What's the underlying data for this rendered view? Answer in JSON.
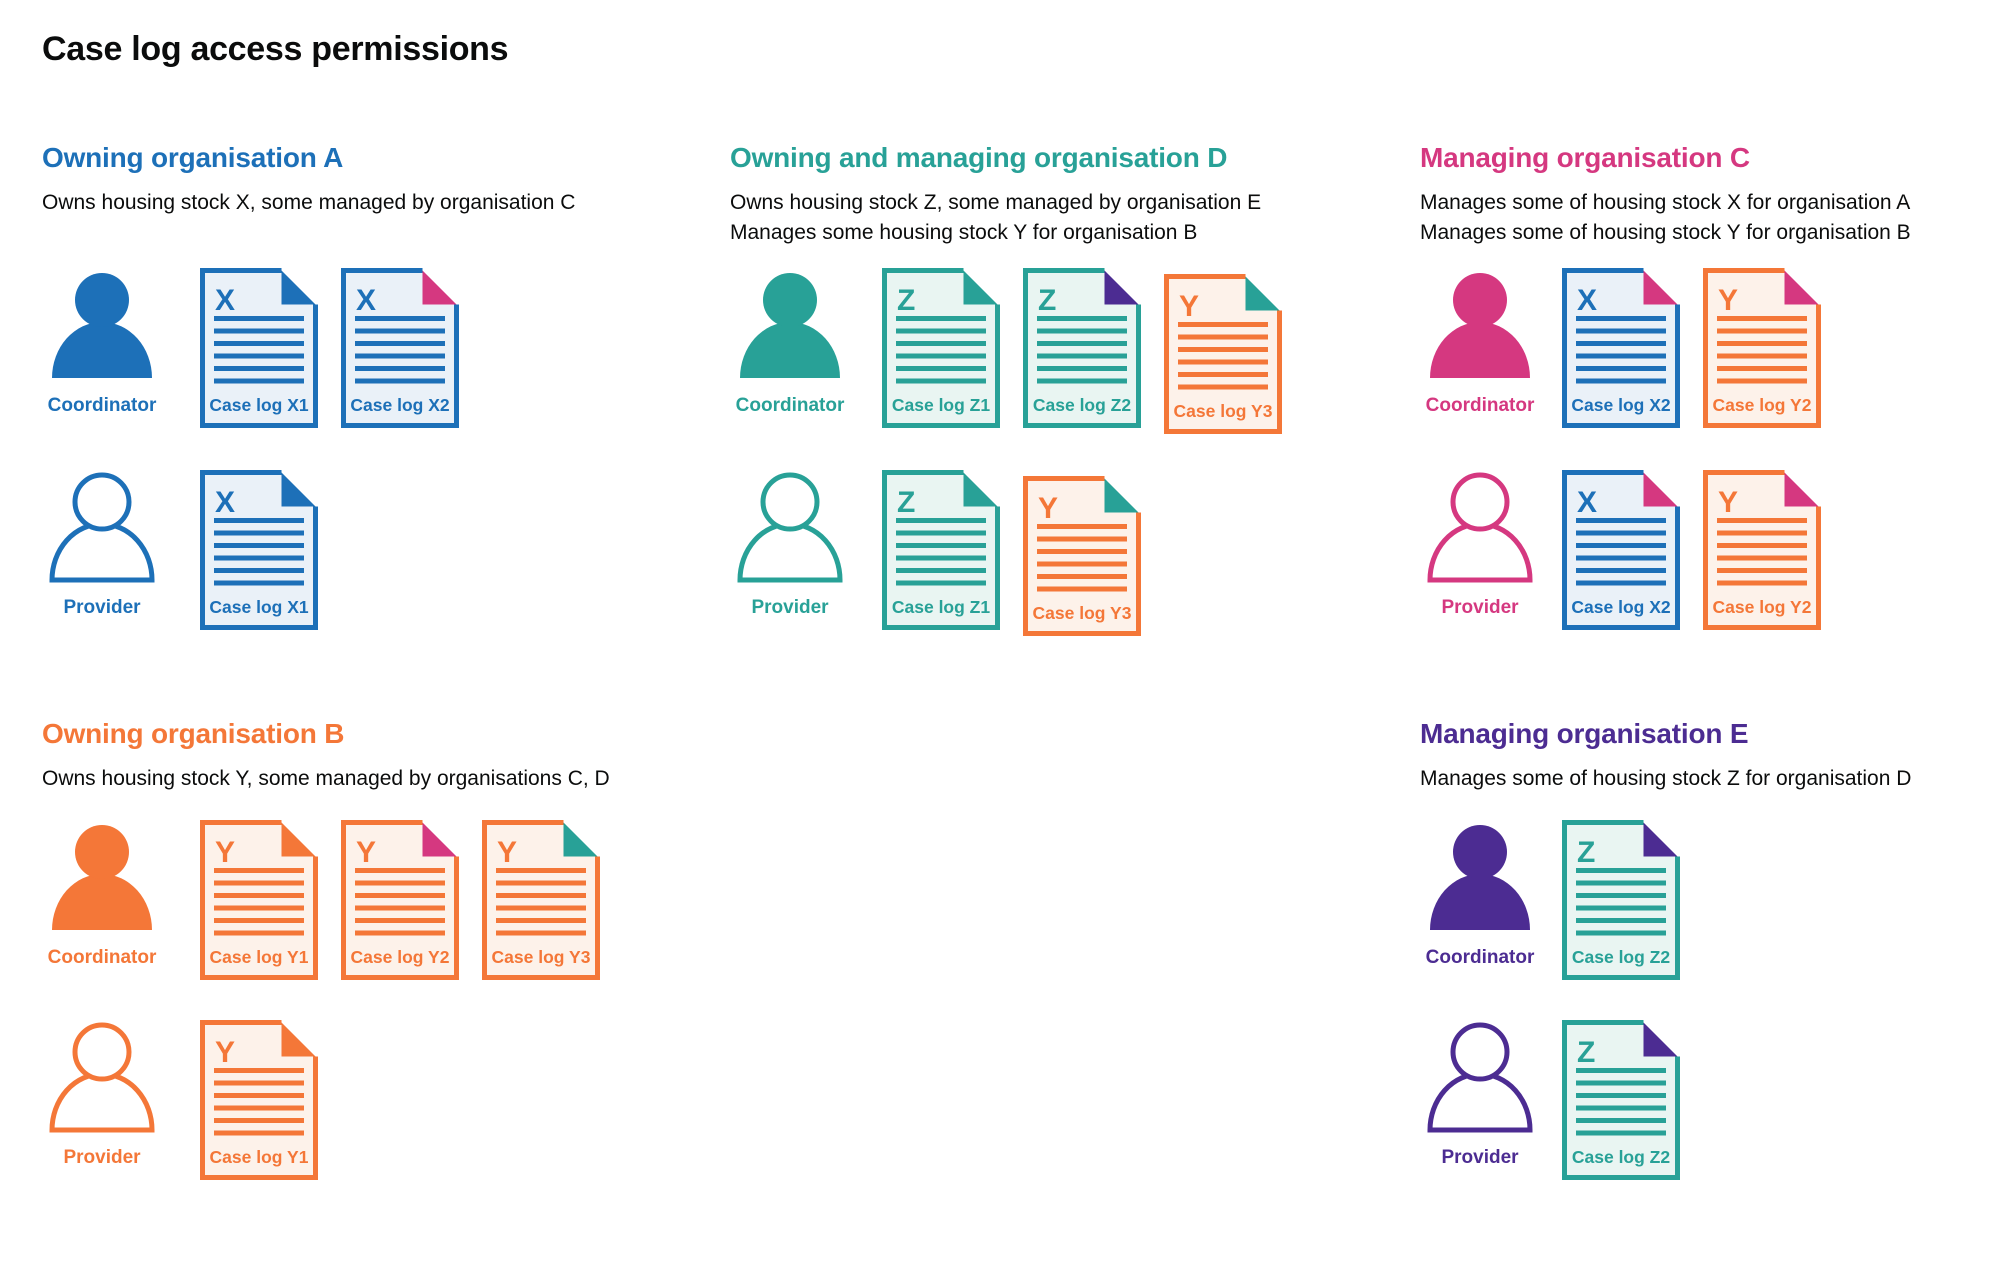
{
  "title": "Case log access permissions",
  "palette": {
    "blue": "#1d70b8",
    "teal": "#28a197",
    "pink": "#d53880",
    "orange": "#f47738",
    "purple": "#4c2c92",
    "blue_tint": "#eaf1f8",
    "teal_tint": "#e9f5f2",
    "orange_tint": "#fdf2ea",
    "text": "#0b0c0c"
  },
  "roles": [
    "Coordinator",
    "Provider"
  ],
  "sections": [
    {
      "id": "a",
      "color": "blue",
      "heading": "Owning organisation A",
      "desc": [
        "Owns housing stock X, some managed by organisation C"
      ],
      "rows": [
        {
          "role": "Coordinator",
          "docs": [
            {
              "letter": "X",
              "label": "Case log X1",
              "page": "blue",
              "fold": "blue"
            },
            {
              "letter": "X",
              "label": "Case log X2",
              "page": "blue",
              "fold": "pink"
            }
          ]
        },
        {
          "role": "Provider",
          "docs": [
            {
              "letter": "X",
              "label": "Case log X1",
              "page": "blue",
              "fold": "blue"
            }
          ]
        }
      ]
    },
    {
      "id": "d",
      "color": "teal",
      "heading": "Owning and managing organisation D",
      "desc": [
        "Owns housing stock Z, some managed by organisation E",
        "Manages some housing stock Y for organisation B"
      ],
      "rows": [
        {
          "role": "Coordinator",
          "docs": [
            {
              "letter": "Z",
              "label": "Case log Z1",
              "page": "teal",
              "fold": "teal"
            },
            {
              "letter": "Z",
              "label": "Case log Z2",
              "page": "teal",
              "fold": "purple"
            },
            {
              "letter": "Y",
              "label": "Case log Y3",
              "page": "orange",
              "fold": "teal",
              "offset": true
            }
          ]
        },
        {
          "role": "Provider",
          "docs": [
            {
              "letter": "Z",
              "label": "Case log Z1",
              "page": "teal",
              "fold": "teal"
            },
            {
              "letter": "Y",
              "label": "Case log Y3",
              "page": "orange",
              "fold": "teal",
              "offset": true
            }
          ]
        }
      ]
    },
    {
      "id": "c",
      "color": "pink",
      "heading": "Managing organisation C",
      "desc": [
        "Manages some of housing stock X for organisation A",
        "Manages some of housing stock Y for organisation B"
      ],
      "rows": [
        {
          "role": "Coordinator",
          "docs": [
            {
              "letter": "X",
              "label": "Case log X2",
              "page": "blue",
              "fold": "pink"
            },
            {
              "letter": "Y",
              "label": "Case log Y2",
              "page": "orange",
              "fold": "pink"
            }
          ]
        },
        {
          "role": "Provider",
          "docs": [
            {
              "letter": "X",
              "label": "Case log X2",
              "page": "blue",
              "fold": "pink"
            },
            {
              "letter": "Y",
              "label": "Case log Y2",
              "page": "orange",
              "fold": "pink"
            }
          ]
        }
      ]
    },
    {
      "id": "b",
      "color": "orange",
      "heading": "Owning organisation B",
      "desc": [
        "Owns housing stock Y, some managed by organisations C, D"
      ],
      "rows": [
        {
          "role": "Coordinator",
          "docs": [
            {
              "letter": "Y",
              "label": "Case log Y1",
              "page": "orange",
              "fold": "orange"
            },
            {
              "letter": "Y",
              "label": "Case log Y2",
              "page": "orange",
              "fold": "pink"
            },
            {
              "letter": "Y",
              "label": "Case log Y3",
              "page": "orange",
              "fold": "teal"
            }
          ]
        },
        {
          "role": "Provider",
          "docs": [
            {
              "letter": "Y",
              "label": "Case log Y1",
              "page": "orange",
              "fold": "orange"
            }
          ]
        }
      ]
    },
    {
      "id": "e",
      "color": "purple",
      "heading": "Managing organisation E",
      "desc": [
        "Manages some of housing stock Z for organisation D"
      ],
      "rows": [
        {
          "role": "Coordinator",
          "docs": [
            {
              "letter": "Z",
              "label": "Case log Z2",
              "page": "teal",
              "fold": "purple"
            }
          ]
        },
        {
          "role": "Provider",
          "docs": [
            {
              "letter": "Z",
              "label": "Case log Z2",
              "page": "teal",
              "fold": "purple"
            }
          ]
        }
      ]
    }
  ]
}
